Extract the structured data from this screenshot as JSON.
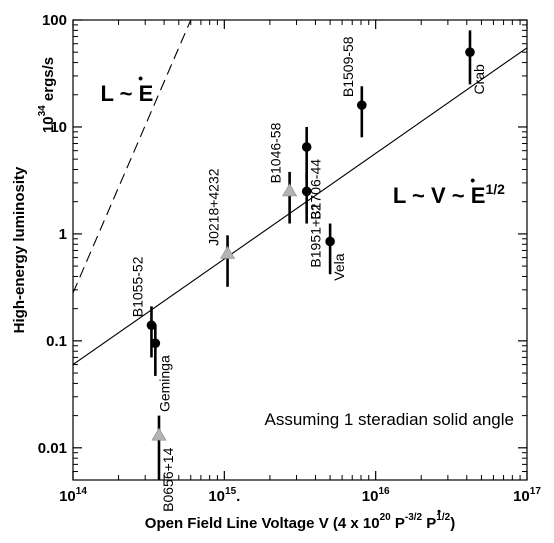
{
  "chart_data": {
    "type": "scatter",
    "x_scale": "log",
    "y_scale": "log",
    "xlim": [
      100000000000000.0,
      1e+17
    ],
    "ylim": [
      0.005,
      100
    ],
    "xlabel": {
      "main": "Open Field Line Voltage V",
      "formula_prefix": "(4 x 10",
      "formula_exp1": "20",
      "formula_p": " P",
      "formula_exp2": "-3/2",
      "formula_pdot": " P",
      "formula_exp3": "1/2",
      "formula_close": ")",
      "dot_symbol": "•"
    },
    "ylabel": {
      "main": "High-energy luminosity",
      "unit_base": "10",
      "unit_exp": "34",
      "unit_rest": " ergs/s"
    },
    "x_ticks": [
      {
        "value": 100000000000000.0,
        "base": "10",
        "exp": "14"
      },
      {
        "value": 1000000000000000.0,
        "base": "10",
        "exp": "15",
        "suffix": "."
      },
      {
        "value": 1e+16,
        "base": "10",
        "exp": "16"
      },
      {
        "value": 1e+17,
        "base": "10",
        "exp": "17"
      }
    ],
    "y_ticks": [
      {
        "value": 0.01,
        "label": "0.01"
      },
      {
        "value": 0.1,
        "label": "0.1"
      },
      {
        "value": 1,
        "label": "1"
      },
      {
        "value": 10,
        "label": "10"
      },
      {
        "value": 100,
        "label": "100"
      }
    ],
    "relations": [
      {
        "text_main": "L ~ ",
        "text_end": "E",
        "dot_symbol": "•",
        "sup": "",
        "line_style": "dashed",
        "line": [
          [
            100000000000000.0,
            0.28
          ],
          [
            600000000000000.0,
            100
          ]
        ],
        "label_at": [
          152000000000000.0,
          17.5
        ]
      },
      {
        "text_main": "L ~ V ~ ",
        "text_end": "E",
        "dot_symbol": "•",
        "sup": "1/2",
        "line_style": "solid",
        "line": [
          [
            100000000000000.0,
            0.06
          ],
          [
            1e+17,
            55
          ]
        ],
        "label_at": [
          1.3e+16,
          1.95
        ]
      }
    ],
    "series": [
      {
        "marker": "circle",
        "color": "#000000",
        "points": [
          {
            "name": "Crab",
            "x": 4.2e+16,
            "y": 50,
            "y_low": 25,
            "y_high": 80,
            "label_side": "right",
            "label_angle": -90
          },
          {
            "name": "B1509-58",
            "x": 8100000000000000.0,
            "y": 16,
            "y_low": 8,
            "y_high": 24,
            "label_side": "left",
            "label_angle": -90
          },
          {
            "name": "B1706-44",
            "x": 3500000000000000.0,
            "y": 6.5,
            "y_low": 3.2,
            "y_high": 10,
            "label_side": "right",
            "label_angle": -90
          },
          {
            "name": "B1951+32",
            "x": 3500000000000000.0,
            "y": 2.5,
            "y_low": 1.25,
            "y_high": 3.8,
            "label_side": "right",
            "label_angle": -90
          },
          {
            "name": "Vela",
            "x": 5000000000000000.0,
            "y": 0.85,
            "y_low": 0.42,
            "y_high": 1.25,
            "label_side": "right",
            "label_angle": -90
          },
          {
            "name": "B1055-52",
            "x": 330000000000000.0,
            "y": 0.14,
            "y_low": 0.07,
            "y_high": 0.21,
            "label_side": "left",
            "label_angle": -90
          },
          {
            "name": "Geminga",
            "x": 350000000000000.0,
            "y": 0.095,
            "y_low": 0.047,
            "y_high": 0.143,
            "label_side": "right",
            "label_angle": -90
          }
        ]
      },
      {
        "marker": "triangle",
        "color": "#b4b4b4",
        "points": [
          {
            "name": "B1046-58",
            "x": 2700000000000000.0,
            "y": 2.5,
            "y_low": 1.25,
            "y_high": 3.8,
            "label_side": "left",
            "label_angle": -90
          },
          {
            "name": "J0218+4232",
            "x": 1050000000000000.0,
            "y": 0.65,
            "y_low": 0.32,
            "y_high": 0.97,
            "label_side": "left",
            "label_angle": -90
          },
          {
            "name": "B0656+14",
            "x": 370000000000000.0,
            "y": 0.013,
            "y_low": 0.005,
            "y_high": 0.02,
            "label_side": "right",
            "label_angle": -90
          }
        ]
      }
    ],
    "annotation": "Assuming 1 steradian solid angle"
  }
}
